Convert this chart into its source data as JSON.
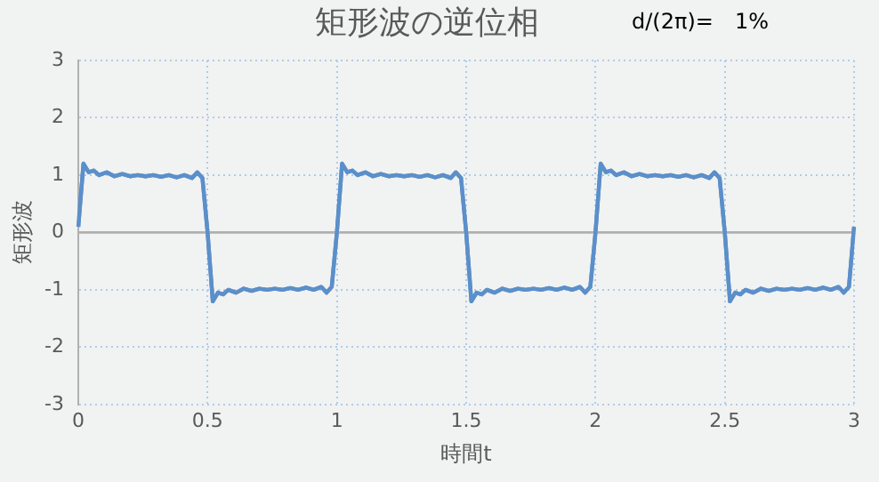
{
  "chart_data": {
    "type": "line",
    "title": "矩形波の逆位相",
    "xlabel": "時間t",
    "ylabel": "矩形波",
    "annotations": [
      "d/(2π)=",
      "1%"
    ],
    "xlim": [
      0,
      3
    ],
    "xticks": [
      0,
      0.5,
      1,
      1.5,
      2,
      2.5,
      3
    ],
    "ylim": [
      -3,
      3
    ],
    "yticks": [
      -3,
      -2,
      -1,
      0,
      1,
      2,
      3
    ],
    "grid": true,
    "legend": false,
    "marker": "none",
    "line_style": "solid",
    "ref_lines": [
      {
        "axis": "y",
        "value": 0,
        "color": "#b0b0b0"
      }
    ],
    "series": [
      {
        "color": "#5b8fc9",
        "x": [
          0,
          0.02,
          0.04,
          0.06,
          0.08,
          0.11,
          0.14,
          0.17,
          0.2,
          0.23,
          0.26,
          0.29,
          0.32,
          0.35,
          0.38,
          0.41,
          0.44,
          0.46,
          0.48,
          0.5,
          0.52,
          0.54,
          0.56,
          0.58,
          0.61,
          0.64,
          0.67,
          0.7,
          0.73,
          0.76,
          0.79,
          0.82,
          0.85,
          0.88,
          0.91,
          0.94,
          0.96,
          0.98,
          1,
          1.02,
          1.04,
          1.06,
          1.08,
          1.11,
          1.14,
          1.17,
          1.2,
          1.23,
          1.26,
          1.29,
          1.32,
          1.35,
          1.38,
          1.41,
          1.44,
          1.46,
          1.48,
          1.5,
          1.52,
          1.54,
          1.56,
          1.58,
          1.61,
          1.64,
          1.67,
          1.7,
          1.73,
          1.76,
          1.79,
          1.82,
          1.85,
          1.88,
          1.91,
          1.94,
          1.96,
          1.98,
          2,
          2.02,
          2.04,
          2.06,
          2.08,
          2.11,
          2.14,
          2.17,
          2.2,
          2.23,
          2.26,
          2.29,
          2.32,
          2.35,
          2.38,
          2.41,
          2.44,
          2.46,
          2.48,
          2.5,
          2.52,
          2.54,
          2.56,
          2.58,
          2.61,
          2.64,
          2.67,
          2.7,
          2.73,
          2.76,
          2.79,
          2.82,
          2.85,
          2.88,
          2.91,
          2.94,
          2.96,
          2.98,
          3
        ],
        "values": [
          0.1,
          1.2,
          1.05,
          1.08,
          1.0,
          1.05,
          0.98,
          1.02,
          0.98,
          1.0,
          0.98,
          1.0,
          0.97,
          1.0,
          0.96,
          1.0,
          0.95,
          1.05,
          0.95,
          0,
          -1.2,
          -1.05,
          -1.08,
          -1.0,
          -1.05,
          -0.98,
          -1.02,
          -0.98,
          -1.0,
          -0.98,
          -1.0,
          -0.97,
          -1.0,
          -0.96,
          -1.0,
          -0.95,
          -1.05,
          -0.95,
          0,
          1.2,
          1.05,
          1.08,
          1.0,
          1.05,
          0.98,
          1.02,
          0.98,
          1.0,
          0.98,
          1.0,
          0.97,
          1.0,
          0.96,
          1.0,
          0.95,
          1.05,
          0.95,
          0,
          -1.2,
          -1.05,
          -1.08,
          -1.0,
          -1.05,
          -0.98,
          -1.02,
          -0.98,
          -1.0,
          -0.98,
          -1.0,
          -0.97,
          -1.0,
          -0.96,
          -1.0,
          -0.95,
          -1.05,
          -0.95,
          0,
          1.2,
          1.05,
          1.08,
          1.0,
          1.05,
          0.98,
          1.02,
          0.98,
          1.0,
          0.98,
          1.0,
          0.97,
          1.0,
          0.96,
          1.0,
          0.95,
          1.05,
          0.95,
          0,
          -1.2,
          -1.05,
          -1.08,
          -1.0,
          -1.05,
          -0.98,
          -1.02,
          -0.98,
          -1.0,
          -0.98,
          -1.0,
          -0.97,
          -1.0,
          -0.96,
          -1.0,
          -0.95,
          -1.05,
          -0.95,
          0.1
        ]
      }
    ]
  }
}
